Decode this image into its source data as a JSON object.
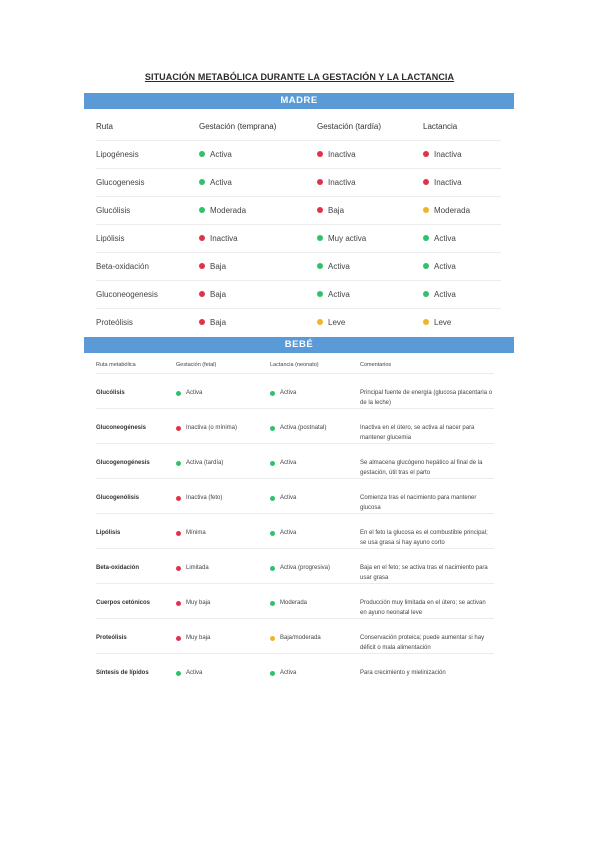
{
  "title": "SITUACIÓN METABÓLICA DURANTE LA GESTACIÓN Y LA LACTANCIA",
  "colors": {
    "header_bar": "#5a9ad6",
    "green": "#2ec36a",
    "red": "#e0334a",
    "yellow": "#f0b429"
  },
  "madre": {
    "header": "MADRE",
    "columns": [
      "Ruta",
      "Gestación (temprana)",
      "Gestación (tardía)",
      "Lactancia"
    ],
    "rows": [
      {
        "ruta": "Lipogénesis",
        "cells": [
          {
            "label": "Activa",
            "color": "green"
          },
          {
            "label": "Inactiva",
            "color": "red"
          },
          {
            "label": "Inactiva",
            "color": "red"
          }
        ]
      },
      {
        "ruta": "Glucogenesis",
        "cells": [
          {
            "label": "Activa",
            "color": "green"
          },
          {
            "label": "Inactiva",
            "color": "red"
          },
          {
            "label": "Inactiva",
            "color": "red"
          }
        ]
      },
      {
        "ruta": "Glucólisis",
        "cells": [
          {
            "label": "Moderada",
            "color": "green"
          },
          {
            "label": "Baja",
            "color": "red"
          },
          {
            "label": "Moderada",
            "color": "yellow"
          }
        ]
      },
      {
        "ruta": "Lipólisis",
        "cells": [
          {
            "label": "Inactiva",
            "color": "red"
          },
          {
            "label": "Muy activa",
            "color": "green"
          },
          {
            "label": "Activa",
            "color": "green"
          }
        ]
      },
      {
        "ruta": "Beta-oxidación",
        "cells": [
          {
            "label": "Baja",
            "color": "red"
          },
          {
            "label": "Activa",
            "color": "green"
          },
          {
            "label": "Activa",
            "color": "green"
          }
        ]
      },
      {
        "ruta": "Gluconeogenesis",
        "cells": [
          {
            "label": "Baja",
            "color": "red"
          },
          {
            "label": "Activa",
            "color": "green"
          },
          {
            "label": "Activa",
            "color": "green"
          }
        ]
      },
      {
        "ruta": "Proteólisis",
        "cells": [
          {
            "label": "Baja",
            "color": "red"
          },
          {
            "label": "Leve",
            "color": "yellow"
          },
          {
            "label": "Leve",
            "color": "yellow"
          }
        ]
      }
    ]
  },
  "bebe": {
    "header": "BEBÉ",
    "columns": [
      "Ruta metabólica",
      "Gestación (fetal)",
      "Lactancia (neonato)",
      "Comentarios"
    ],
    "rows": [
      {
        "ruta": "Glucólisis",
        "cells": [
          {
            "label": "Activa",
            "color": "green"
          },
          {
            "label": "Activa",
            "color": "green"
          }
        ],
        "comentario": "Principal fuente de energía (glucosa placentaria o de la leche)"
      },
      {
        "ruta": "Gluconeogénesis",
        "cells": [
          {
            "label": "Inactiva (o mínima)",
            "color": "red"
          },
          {
            "label": "Activa (postnatal)",
            "color": "green"
          }
        ],
        "comentario": "Inactiva en el útero, se activa al nacer para mantener glucemia"
      },
      {
        "ruta": "Glucogenogénesis",
        "cells": [
          {
            "label": "Activa (tardía)",
            "color": "green"
          },
          {
            "label": "Activa",
            "color": "green"
          }
        ],
        "comentario": "Se almacena glucógeno hepático al final de la gestación, útil tras el parto"
      },
      {
        "ruta": "Glucogenólisis",
        "cells": [
          {
            "label": "Inactiva (feto)",
            "color": "red"
          },
          {
            "label": "Activa",
            "color": "green"
          }
        ],
        "comentario": "Comienza tras el nacimiento para mantener glucosa"
      },
      {
        "ruta": "Lipólisis",
        "cells": [
          {
            "label": "Mínima",
            "color": "red"
          },
          {
            "label": "Activa",
            "color": "green"
          }
        ],
        "comentario": "En el feto la glucosa es el combustible principal; se usa grasa si hay ayuno corto"
      },
      {
        "ruta": "Beta-oxidación",
        "cells": [
          {
            "label": "Limitada",
            "color": "red"
          },
          {
            "label": "Activa (progresiva)",
            "color": "green"
          }
        ],
        "comentario": "Baja en el feto; se activa tras el nacimiento para usar grasa"
      },
      {
        "ruta": "Cuerpos cetónicos",
        "cells": [
          {
            "label": "Muy baja",
            "color": "red"
          },
          {
            "label": "Moderada",
            "color": "green"
          }
        ],
        "comentario": "Producción muy limitada en el útero; se activan en ayuno neonatal leve"
      },
      {
        "ruta": "Proteólisis",
        "cells": [
          {
            "label": "Muy baja",
            "color": "red"
          },
          {
            "label": "Baja/moderada",
            "color": "yellow"
          }
        ],
        "comentario": "Conservación proteica; puede aumentar si hay déficit o mala alimentación"
      },
      {
        "ruta": "Síntesis de lípidos",
        "cells": [
          {
            "label": "Activa",
            "color": "green"
          },
          {
            "label": "Activa",
            "color": "green"
          }
        ],
        "comentario": "Para crecimiento y mielinización"
      }
    ]
  }
}
